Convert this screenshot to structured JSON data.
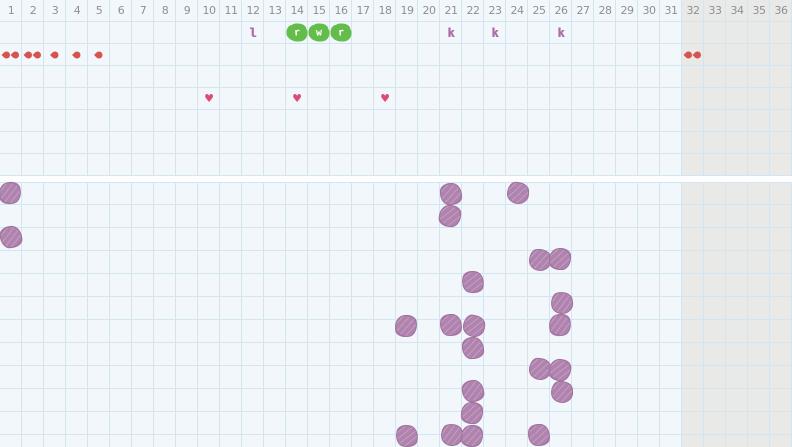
{
  "colors": {
    "cell_bg": "#f1f7fa",
    "shaded_bg": "#e9e9e8",
    "grid_line": "#d2e5f0",
    "header_text": "#8b9196",
    "droplet": "#d6534e",
    "heart": "#dc4c77",
    "green_blob": "#64bd4a",
    "marker_letter": "#af6ea7",
    "purple_blob": "#b083ae",
    "purple_blob_edge": "#a0719e"
  },
  "grid": {
    "columns": 36,
    "column_labels": [
      "1",
      "2",
      "3",
      "4",
      "5",
      "6",
      "7",
      "8",
      "9",
      "10",
      "11",
      "12",
      "13",
      "14",
      "15",
      "16",
      "17",
      "18",
      "19",
      "20",
      "21",
      "22",
      "23",
      "24",
      "25",
      "26",
      "27",
      "28",
      "29",
      "30",
      "31",
      "32",
      "33",
      "34",
      "35",
      "36"
    ],
    "shaded_from_column": 32,
    "upper_rows": 7,
    "lower_rows": 12
  },
  "upper_marks": [
    {
      "row": 1,
      "col": 12,
      "type": "letter",
      "label": "l",
      "icon": "marker-letter-l"
    },
    {
      "row": 1,
      "col": 14,
      "type": "green",
      "label": "r",
      "icon": "green-scribble-r"
    },
    {
      "row": 1,
      "col": 15,
      "type": "green",
      "label": "w",
      "icon": "green-scribble-w"
    },
    {
      "row": 1,
      "col": 16,
      "type": "green",
      "label": "r",
      "icon": "green-scribble-r"
    },
    {
      "row": 1,
      "col": 21,
      "type": "letter",
      "label": "k",
      "icon": "marker-letter-k"
    },
    {
      "row": 1,
      "col": 23,
      "type": "letter",
      "label": "k",
      "icon": "marker-letter-k"
    },
    {
      "row": 1,
      "col": 26,
      "type": "letter",
      "label": "k",
      "icon": "marker-letter-k"
    },
    {
      "row": 2,
      "col": 1,
      "type": "droplets",
      "count": 2,
      "icon": "droplet-icon"
    },
    {
      "row": 2,
      "col": 2,
      "type": "droplets",
      "count": 2,
      "icon": "droplet-icon"
    },
    {
      "row": 2,
      "col": 3,
      "type": "droplets",
      "count": 1,
      "icon": "droplet-icon"
    },
    {
      "row": 2,
      "col": 4,
      "type": "droplets",
      "count": 1,
      "icon": "droplet-icon"
    },
    {
      "row": 2,
      "col": 5,
      "type": "droplets",
      "count": 1,
      "icon": "droplet-icon"
    },
    {
      "row": 2,
      "col": 32,
      "type": "droplets",
      "count": 2,
      "icon": "droplet-icon"
    },
    {
      "row": 4,
      "col": 10,
      "type": "heart",
      "glyph": "♥",
      "icon": "heart-icon"
    },
    {
      "row": 4,
      "col": 14,
      "type": "heart",
      "glyph": "♥",
      "icon": "heart-icon"
    },
    {
      "row": 4,
      "col": 18,
      "type": "heart",
      "glyph": "♥",
      "icon": "heart-icon"
    }
  ],
  "lower_marks": [
    {
      "row": 1,
      "col": 1
    },
    {
      "row": 1,
      "col": 21
    },
    {
      "row": 1,
      "col": 24
    },
    {
      "row": 2,
      "col": 21
    },
    {
      "row": 3,
      "col": 1
    },
    {
      "row": 4,
      "col": 25
    },
    {
      "row": 4,
      "col": 26
    },
    {
      "row": 5,
      "col": 22
    },
    {
      "row": 6,
      "col": 26
    },
    {
      "row": 7,
      "col": 19
    },
    {
      "row": 7,
      "col": 21
    },
    {
      "row": 7,
      "col": 22
    },
    {
      "row": 7,
      "col": 26
    },
    {
      "row": 8,
      "col": 22
    },
    {
      "row": 9,
      "col": 25
    },
    {
      "row": 9,
      "col": 26
    },
    {
      "row": 10,
      "col": 22
    },
    {
      "row": 10,
      "col": 26
    },
    {
      "row": 11,
      "col": 22
    },
    {
      "row": 12,
      "col": 19
    },
    {
      "row": 12,
      "col": 21
    },
    {
      "row": 12,
      "col": 22
    },
    {
      "row": 12,
      "col": 25
    }
  ]
}
